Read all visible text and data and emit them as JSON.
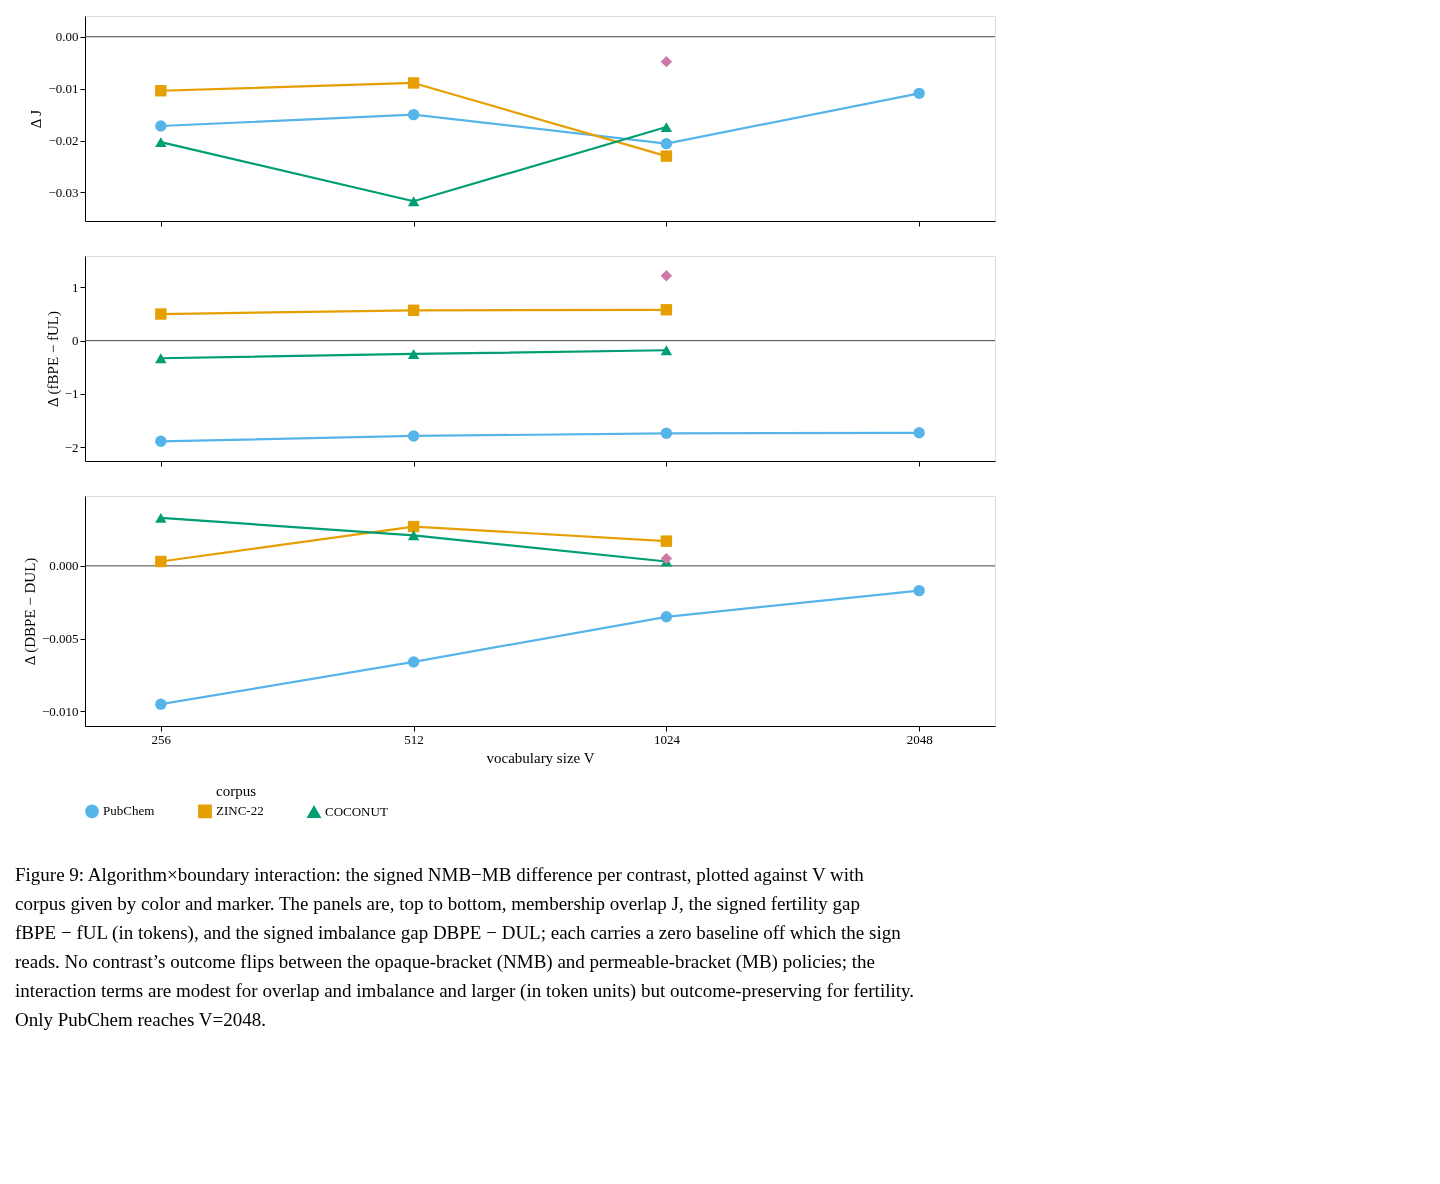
{
  "chart_data": [
    {
      "type": "line",
      "ylabel": "Δ J",
      "categories": [
        "256",
        "512",
        "1024",
        "2048"
      ],
      "ylim": [
        -0.0355,
        0.004
      ],
      "yticks": [
        {
          "value": 0,
          "label": "0.00"
        },
        {
          "value": -0.01,
          "label": "−0.01"
        },
        {
          "value": -0.02,
          "label": "−0.02"
        },
        {
          "value": -0.03,
          "label": "−0.03"
        }
      ],
      "tick_labels": "y",
      "grid": false,
      "legend": "bottom",
      "legend_title": "corpus",
      "ref_lines": [
        {
          "axis": "y",
          "value": 0,
          "color": "#444444"
        }
      ],
      "series": [
        {
          "name": "PubChem",
          "color": "#56b4e9",
          "marker": "circle",
          "values": [
            -0.0172,
            -0.015,
            -0.0206,
            -0.0109
          ]
        },
        {
          "name": "ZINC-22",
          "color": "#e69f00",
          "marker": "square",
          "values": [
            -0.0104,
            -0.0089,
            -0.023,
            null
          ]
        },
        {
          "name": "COCONUT",
          "color": "#009e73",
          "marker": "triangle",
          "values": [
            -0.0203,
            -0.0317,
            -0.0174,
            null
          ]
        },
        {
          "color": "#cc79a7",
          "marker": "diamond",
          "values": [
            null,
            null,
            -0.0048,
            null
          ]
        }
      ]
    },
    {
      "type": "line",
      "ylabel": "Δ (fBPE − fUL)",
      "categories": [
        "256",
        "512",
        "1024",
        "2048"
      ],
      "ylim": [
        -2.26,
        1.59
      ],
      "yticks": [
        1,
        0,
        {
          "value": -1,
          "label": "−1"
        },
        {
          "value": -2,
          "label": "−2"
        }
      ],
      "tick_labels": "y",
      "grid": false,
      "ref_lines": [
        {
          "axis": "y",
          "value": 0,
          "color": "#444444"
        }
      ],
      "series": [
        {
          "color": "#56b4e9",
          "marker": "circle",
          "values": [
            -1.89,
            -1.79,
            -1.74,
            -1.73
          ]
        },
        {
          "color": "#e69f00",
          "marker": "square",
          "values": [
            0.5,
            0.57,
            0.58,
            null
          ]
        },
        {
          "color": "#009e73",
          "marker": "triangle",
          "values": [
            -0.33,
            -0.25,
            -0.18,
            null
          ]
        },
        {
          "color": "#cc79a7",
          "marker": "diamond",
          "values": [
            null,
            null,
            1.22,
            null
          ]
        }
      ]
    },
    {
      "type": "line",
      "ylabel": "Δ (DBPE − DUL)",
      "xlabel": "vocabulary size V",
      "categories": [
        "256",
        "512",
        "1024",
        "2048"
      ],
      "ylim": [
        -0.011,
        0.0048
      ],
      "yticks": [
        {
          "value": 0,
          "label": "0.000"
        },
        {
          "value": -0.005,
          "label": "−0.005"
        },
        {
          "value": -0.01,
          "label": "−0.010"
        }
      ],
      "grid": false,
      "ref_lines": [
        {
          "axis": "y",
          "value": 0,
          "color": "#444444"
        }
      ],
      "series": [
        {
          "color": "#56b4e9",
          "marker": "circle",
          "values": [
            -0.0095,
            -0.0066,
            -0.0035,
            -0.0017
          ]
        },
        {
          "color": "#e69f00",
          "marker": "square",
          "values": [
            0.0003,
            0.0027,
            0.0017,
            null
          ]
        },
        {
          "color": "#009e73",
          "marker": "triangle",
          "values": [
            0.0033,
            0.0021,
            0.0003,
            null
          ]
        },
        {
          "color": "#cc79a7",
          "marker": "diamond",
          "values": [
            null,
            null,
            0.0005,
            null
          ]
        }
      ],
      "annotations": [
        "Figure 9: Algorithm×boundary interaction: the signed NMB−MB difference per contrast, plotted against V with",
        "corpus given by color and marker. The panels are, top to bottom, membership overlap J, the signed fertility gap",
        "fBPE − fUL (in tokens), and the signed imbalance gap DBPE − DUL; each carries a zero baseline off which the sign",
        "reads. No contrast’s outcome flips between the opaque-bracket (NMB) and permeable-bracket (MB) policies; the",
        "interaction terms are modest for overlap and imbalance and larger (in token units) but outcome-preserving for fertility.",
        "Only PubChem reaches V=2048."
      ]
    }
  ]
}
